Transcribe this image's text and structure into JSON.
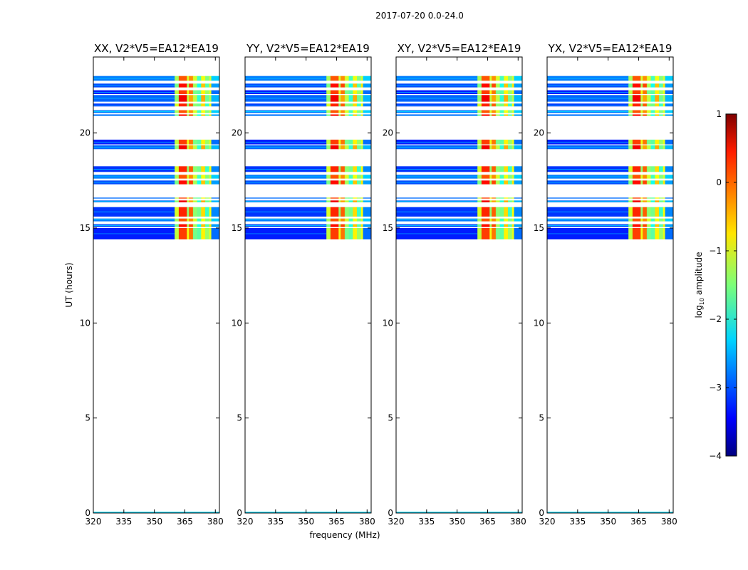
{
  "chart_data": {
    "type": "heatmap",
    "title": "2017-07-20 0.0-24.0",
    "xlabel": "frequency (MHz)",
    "ylabel": "UT (hours)",
    "colorbar_label": "log$_{10}$ amplitude",
    "colorbar_label_main": "log",
    "colorbar_label_sub": "10",
    "colorbar_label_tail": " amplitude",
    "colormap": "jet",
    "xlim": [
      320,
      382
    ],
    "ylim": [
      0,
      24
    ],
    "clim": [
      -4,
      1
    ],
    "x_ticks": [
      320,
      335,
      350,
      365,
      380
    ],
    "x_tick_labels": [
      "320",
      "335",
      "350",
      "365",
      "380"
    ],
    "y_ticks": [
      0,
      5,
      10,
      15,
      20
    ],
    "y_tick_labels": [
      "0",
      "5",
      "10",
      "15",
      "20"
    ],
    "colorbar_ticks": [
      1,
      0,
      -1,
      -2,
      -3,
      -4
    ],
    "colorbar_tick_labels": [
      "1",
      "0",
      "−1",
      "−2",
      "−3",
      "−4"
    ],
    "panels": [
      {
        "title": "XX, V2*V5=EA12*EA19",
        "pol": "XX"
      },
      {
        "title": "YY, V2*V5=EA12*EA19",
        "pol": "YY"
      },
      {
        "title": "XY, V2*V5=EA12*EA19",
        "pol": "XY"
      },
      {
        "title": "YX, V2*V5=EA12*EA19",
        "pol": "YX"
      }
    ],
    "time_blocks_hours": [
      [
        14.4,
        15.0
      ],
      [
        15.05,
        15.2
      ],
      [
        15.35,
        15.5
      ],
      [
        15.6,
        16.1
      ],
      [
        16.35,
        16.45
      ],
      [
        16.55,
        16.6
      ],
      [
        17.3,
        17.5
      ],
      [
        17.6,
        17.8
      ],
      [
        17.95,
        18.25
      ],
      [
        19.15,
        19.35
      ],
      [
        19.4,
        19.65
      ],
      [
        20.9,
        20.98
      ],
      [
        21.05,
        21.2
      ],
      [
        21.4,
        21.55
      ],
      [
        21.65,
        22.0
      ],
      [
        22.05,
        22.25
      ],
      [
        22.4,
        22.6
      ],
      [
        22.75,
        23.0
      ]
    ],
    "freq_band_levels": [
      {
        "range": [
          320,
          360
        ],
        "value": -3.0
      },
      {
        "range": [
          360,
          362
        ],
        "value": -1.3
      },
      {
        "range": [
          362,
          366
        ],
        "value": 0.2
      },
      {
        "range": [
          366,
          367
        ],
        "value": -1.2
      },
      {
        "range": [
          367,
          369
        ],
        "value": -0.2
      },
      {
        "range": [
          369,
          371
        ],
        "value": -1.3
      },
      {
        "range": [
          371,
          373
        ],
        "value": -1.8
      },
      {
        "range": [
          373,
          375
        ],
        "value": -0.7
      },
      {
        "range": [
          375,
          377
        ],
        "value": -1.6
      },
      {
        "range": [
          377,
          378
        ],
        "value": -1.0
      },
      {
        "range": [
          378,
          382
        ],
        "value": -2.6
      }
    ]
  }
}
